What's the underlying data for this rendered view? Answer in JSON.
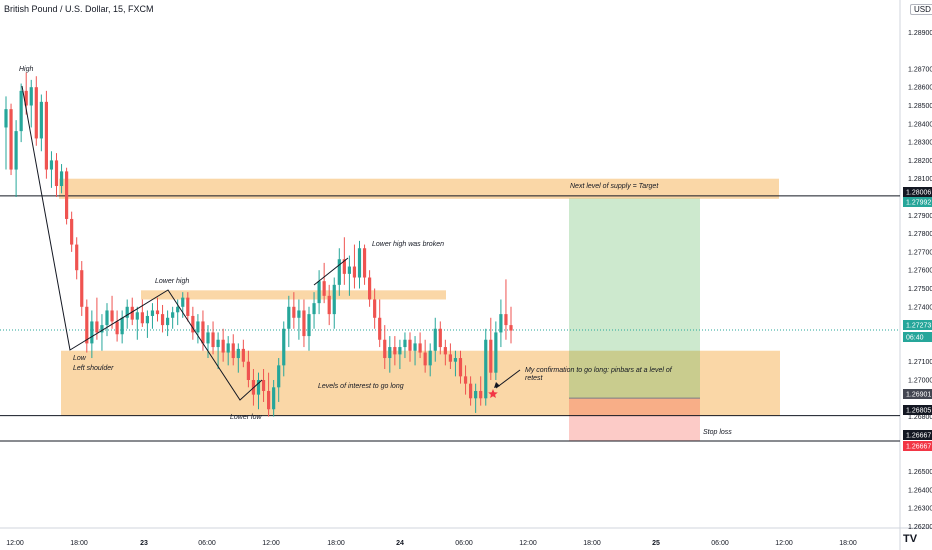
{
  "header": {
    "title": "British Pound / U.S. Dollar, 15, FXCM",
    "currency": "USD"
  },
  "logo": "TV",
  "colors": {
    "up": "#26a69a",
    "down": "#ef5350",
    "zone": "#f8c98a",
    "target": "#4caf50",
    "stop": "#f44336"
  },
  "price_axis": {
    "ticks": [
      "1.28900",
      "1.28700",
      "1.28600",
      "1.28500",
      "1.28400",
      "1.28300",
      "1.28200",
      "1.28100",
      "1.27900",
      "1.27800",
      "1.27700",
      "1.27600",
      "1.27500",
      "1.27400",
      "1.27100",
      "1.27000",
      "1.26800",
      "1.26500",
      "1.26400",
      "1.26300",
      "1.26200"
    ],
    "tags": [
      {
        "name": "target-level",
        "label": "1.28006",
        "color": "#131722"
      },
      {
        "name": "take-profit",
        "label": "1.27992",
        "color": "#26a69a"
      },
      {
        "name": "current-price",
        "label": "1.27273",
        "color": "#26a69a"
      },
      {
        "name": "countdown",
        "label": "06:40",
        "color": "#26a69a"
      },
      {
        "name": "entry",
        "label": "1.26901",
        "color": "#434651"
      },
      {
        "name": "support-level",
        "label": "1.26805",
        "color": "#131722"
      },
      {
        "name": "stop-level",
        "label": "1.26667",
        "color": "#131722"
      },
      {
        "name": "stop-loss",
        "label": "1.26667",
        "color": "#f23645"
      }
    ]
  },
  "time_axis": {
    "ticks": [
      {
        "label": "12:00",
        "bold": false
      },
      {
        "label": "18:00",
        "bold": false
      },
      {
        "label": "23",
        "bold": true
      },
      {
        "label": "06:00",
        "bold": false
      },
      {
        "label": "12:00",
        "bold": false
      },
      {
        "label": "18:00",
        "bold": false
      },
      {
        "label": "24",
        "bold": true
      },
      {
        "label": "06:00",
        "bold": false
      },
      {
        "label": "12:00",
        "bold": false
      },
      {
        "label": "18:00",
        "bold": false
      },
      {
        "label": "25",
        "bold": true
      },
      {
        "label": "06:00",
        "bold": false
      },
      {
        "label": "12:00",
        "bold": false
      },
      {
        "label": "18:00",
        "bold": false
      }
    ]
  },
  "annotations": [
    {
      "name": "high-label",
      "text": "High"
    },
    {
      "name": "lower-high-label",
      "text": "Lower high"
    },
    {
      "name": "lower-high-broken-label",
      "text": "Lower high was broken"
    },
    {
      "name": "low-label",
      "text": "Low"
    },
    {
      "name": "left-shoulder-label",
      "text": "Left shoulder"
    },
    {
      "name": "lower-low-label",
      "text": "Lower low"
    },
    {
      "name": "levels-of-interest-label",
      "text": "Levels of interest to go long"
    },
    {
      "name": "supply-target-label",
      "text": "Next level of supply = Target"
    },
    {
      "name": "confirmation-label-1",
      "text": "My confirmation to go long: pinbars at a level of"
    },
    {
      "name": "confirmation-label-2",
      "text": "retest"
    },
    {
      "name": "stop-loss-label",
      "text": "Stop loss"
    }
  ],
  "chart_data": {
    "type": "candlestick",
    "symbol": "GBPUSD",
    "timeframe": "15",
    "ylim": [
      1.2615,
      1.2905
    ],
    "candles": [
      [
        1.2838,
        1.2855,
        1.2815,
        1.2848
      ],
      [
        1.2848,
        1.2851,
        1.2812,
        1.2815
      ],
      [
        1.2815,
        1.2842,
        1.28,
        1.2836
      ],
      [
        1.2836,
        1.2862,
        1.283,
        1.2858
      ],
      [
        1.2858,
        1.2868,
        1.2845,
        1.285
      ],
      [
        1.285,
        1.2864,
        1.2838,
        1.286
      ],
      [
        1.286,
        1.2866,
        1.2828,
        1.2832
      ],
      [
        1.2832,
        1.2856,
        1.2825,
        1.2852
      ],
      [
        1.2852,
        1.2858,
        1.281,
        1.2815
      ],
      [
        1.2815,
        1.2825,
        1.2805,
        1.282
      ],
      [
        1.282,
        1.2824,
        1.28,
        1.2806
      ],
      [
        1.2806,
        1.2818,
        1.2802,
        1.2814
      ],
      [
        1.2814,
        1.2816,
        1.2785,
        1.2788
      ],
      [
        1.2788,
        1.2792,
        1.277,
        1.2774
      ],
      [
        1.2774,
        1.2778,
        1.2755,
        1.276
      ],
      [
        1.276,
        1.2765,
        1.2735,
        1.274
      ],
      [
        1.274,
        1.2744,
        1.2715,
        1.272
      ],
      [
        1.272,
        1.2738,
        1.2712,
        1.2732
      ],
      [
        1.2732,
        1.2745,
        1.2722,
        1.2726
      ],
      [
        1.2726,
        1.2736,
        1.2716,
        1.273
      ],
      [
        1.273,
        1.2742,
        1.2724,
        1.2738
      ],
      [
        1.2738,
        1.2746,
        1.2728,
        1.2732
      ],
      [
        1.2732,
        1.2738,
        1.2721,
        1.2725
      ],
      [
        1.2725,
        1.2738,
        1.272,
        1.2734
      ],
      [
        1.2734,
        1.2744,
        1.2728,
        1.274
      ],
      [
        1.274,
        1.2745,
        1.273,
        1.2733
      ],
      [
        1.2733,
        1.274,
        1.2722,
        1.2737
      ],
      [
        1.2737,
        1.2744,
        1.2729,
        1.2731
      ],
      [
        1.2731,
        1.2738,
        1.2723,
        1.2735
      ],
      [
        1.2735,
        1.2742,
        1.2728,
        1.2738
      ],
      [
        1.2738,
        1.2745,
        1.2732,
        1.2736
      ],
      [
        1.2736,
        1.2741,
        1.2726,
        1.273
      ],
      [
        1.273,
        1.2738,
        1.2724,
        1.2734
      ],
      [
        1.2734,
        1.274,
        1.2728,
        1.2737
      ],
      [
        1.2737,
        1.2744,
        1.273,
        1.274
      ],
      [
        1.274,
        1.2748,
        1.2734,
        1.2745
      ],
      [
        1.2745,
        1.2748,
        1.2732,
        1.2735
      ],
      [
        1.2735,
        1.274,
        1.2722,
        1.2726
      ],
      [
        1.2726,
        1.2736,
        1.272,
        1.2732
      ],
      [
        1.2732,
        1.2738,
        1.2716,
        1.272
      ],
      [
        1.272,
        1.273,
        1.2712,
        1.2726
      ],
      [
        1.2726,
        1.2732,
        1.2714,
        1.2718
      ],
      [
        1.2718,
        1.2726,
        1.2706,
        1.2722
      ],
      [
        1.2722,
        1.2728,
        1.271,
        1.2715
      ],
      [
        1.2715,
        1.2724,
        1.2708,
        1.272
      ],
      [
        1.272,
        1.2725,
        1.2708,
        1.2712
      ],
      [
        1.2712,
        1.272,
        1.2704,
        1.2717
      ],
      [
        1.2717,
        1.2722,
        1.2707,
        1.271
      ],
      [
        1.271,
        1.2716,
        1.2696,
        1.27
      ],
      [
        1.27,
        1.2706,
        1.2686,
        1.2692
      ],
      [
        1.2692,
        1.2704,
        1.2684,
        1.27
      ],
      [
        1.27,
        1.2706,
        1.2688,
        1.2694
      ],
      [
        1.2694,
        1.2704,
        1.268,
        1.2684
      ],
      [
        1.2684,
        1.27,
        1.268,
        1.2696
      ],
      [
        1.2696,
        1.2712,
        1.2688,
        1.2708
      ],
      [
        1.2708,
        1.2732,
        1.2702,
        1.2728
      ],
      [
        1.2728,
        1.2746,
        1.2718,
        1.274
      ],
      [
        1.274,
        1.2748,
        1.2728,
        1.2734
      ],
      [
        1.2734,
        1.2744,
        1.2722,
        1.2738
      ],
      [
        1.2738,
        1.2744,
        1.2718,
        1.2724
      ],
      [
        1.2724,
        1.274,
        1.2716,
        1.2736
      ],
      [
        1.2736,
        1.2748,
        1.2728,
        1.2742
      ],
      [
        1.2742,
        1.276,
        1.2736,
        1.2754
      ],
      [
        1.2754,
        1.2764,
        1.2742,
        1.2746
      ],
      [
        1.2746,
        1.2752,
        1.273,
        1.2736
      ],
      [
        1.2736,
        1.2756,
        1.2728,
        1.2752
      ],
      [
        1.2752,
        1.2772,
        1.2746,
        1.2766
      ],
      [
        1.2766,
        1.2778,
        1.2752,
        1.2758
      ],
      [
        1.2758,
        1.2768,
        1.2746,
        1.2762
      ],
      [
        1.2762,
        1.2774,
        1.275,
        1.2756
      ],
      [
        1.2756,
        1.2776,
        1.275,
        1.2772
      ],
      [
        1.2772,
        1.2774,
        1.2752,
        1.2756
      ],
      [
        1.2756,
        1.276,
        1.274,
        1.2744
      ],
      [
        1.2744,
        1.275,
        1.2728,
        1.2734
      ],
      [
        1.2734,
        1.2744,
        1.2718,
        1.2722
      ],
      [
        1.2722,
        1.273,
        1.2706,
        1.2712
      ],
      [
        1.2712,
        1.2724,
        1.2704,
        1.2718
      ],
      [
        1.2718,
        1.2724,
        1.2708,
        1.2714
      ],
      [
        1.2714,
        1.2722,
        1.2706,
        1.2718
      ],
      [
        1.2718,
        1.2726,
        1.2712,
        1.2722
      ],
      [
        1.2722,
        1.2726,
        1.271,
        1.2716
      ],
      [
        1.2716,
        1.2724,
        1.2708,
        1.272
      ],
      [
        1.272,
        1.2726,
        1.2712,
        1.2715
      ],
      [
        1.2715,
        1.2722,
        1.2704,
        1.2708
      ],
      [
        1.2708,
        1.272,
        1.2702,
        1.2716
      ],
      [
        1.2716,
        1.2734,
        1.271,
        1.2728
      ],
      [
        1.2728,
        1.2732,
        1.2714,
        1.2718
      ],
      [
        1.2718,
        1.2722,
        1.2708,
        1.2714
      ],
      [
        1.2714,
        1.272,
        1.2706,
        1.271
      ],
      [
        1.271,
        1.2716,
        1.2702,
        1.2712
      ],
      [
        1.2712,
        1.2716,
        1.2698,
        1.2702
      ],
      [
        1.2702,
        1.2708,
        1.2692,
        1.2698
      ],
      [
        1.2698,
        1.2702,
        1.2686,
        1.269
      ],
      [
        1.269,
        1.2698,
        1.2682,
        1.2694
      ],
      [
        1.2694,
        1.2702,
        1.2686,
        1.269
      ],
      [
        1.269,
        1.2728,
        1.2686,
        1.2722
      ],
      [
        1.2722,
        1.2734,
        1.27,
        1.2704
      ],
      [
        1.2704,
        1.2732,
        1.27,
        1.2726
      ],
      [
        1.2726,
        1.2744,
        1.2718,
        1.2736
      ],
      [
        1.2736,
        1.2755,
        1.2722,
        1.273
      ],
      [
        1.273,
        1.274,
        1.272,
        1.2727
      ]
    ],
    "zones": [
      {
        "name": "supply-zone",
        "label": "Next level of supply = Target"
      },
      {
        "name": "lower-high-zone",
        "label": "Lower high"
      },
      {
        "name": "demand-zone",
        "label": "Levels of interest to go long"
      }
    ],
    "position": {
      "type": "long",
      "entry": 1.26901,
      "target": 1.27992,
      "stop": 1.26667
    },
    "horizontal_lines": [
      1.28006,
      1.26805,
      1.26667
    ]
  }
}
